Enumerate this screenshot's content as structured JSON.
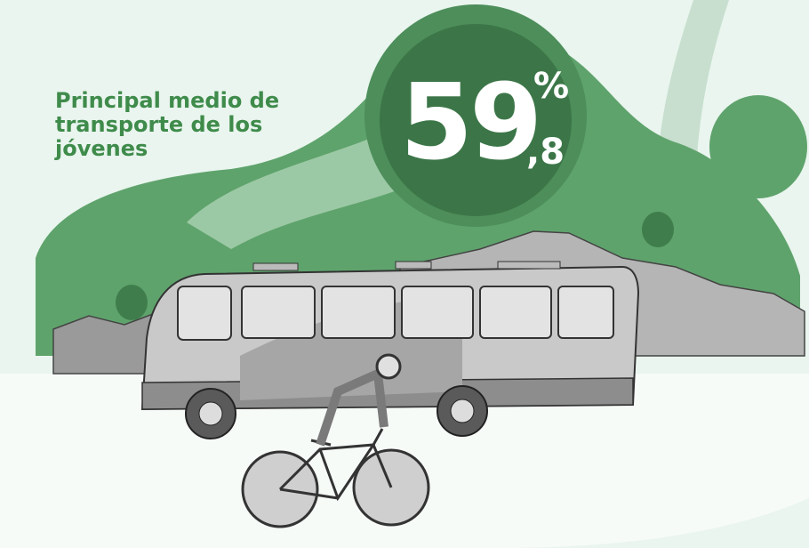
{
  "headline": "Principal medio de transporte de los jóvenes",
  "stat": {
    "integer": "59",
    "decimal": ",8",
    "unit": "%"
  }
}
